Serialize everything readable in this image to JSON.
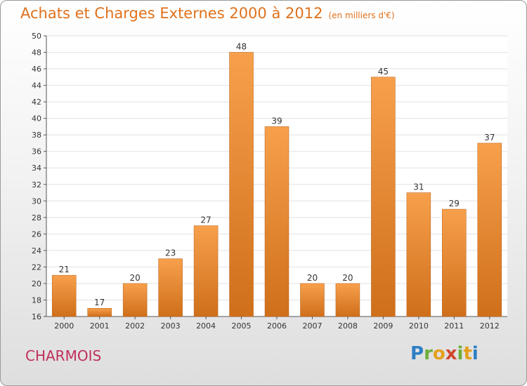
{
  "header": {
    "title": "Achats et Charges Externes 2000 à 2012",
    "unit": "(en milliers d'€)"
  },
  "footer": {
    "city": "CHARMOIS",
    "logo": "Proxiti"
  },
  "colors": {
    "title": "#e0711c",
    "bar_light": "#f7a04c",
    "bar_dark": "#cf6f1a",
    "city": "#c0305a"
  },
  "chart_data": {
    "type": "bar",
    "title": "Achats et Charges Externes 2000 à 2012",
    "xlabel": "",
    "ylabel": "",
    "categories": [
      "2000",
      "2001",
      "2002",
      "2003",
      "2004",
      "2005",
      "2006",
      "2007",
      "2008",
      "2009",
      "2010",
      "2011",
      "2012"
    ],
    "values": [
      21,
      17,
      20,
      23,
      27,
      48,
      39,
      20,
      20,
      45,
      31,
      29,
      37
    ],
    "ylim": [
      16,
      50
    ],
    "yticks": [
      16,
      18,
      20,
      22,
      24,
      26,
      28,
      30,
      32,
      34,
      36,
      38,
      40,
      42,
      44,
      46,
      48,
      50
    ],
    "grid": true,
    "data_labels": true
  }
}
